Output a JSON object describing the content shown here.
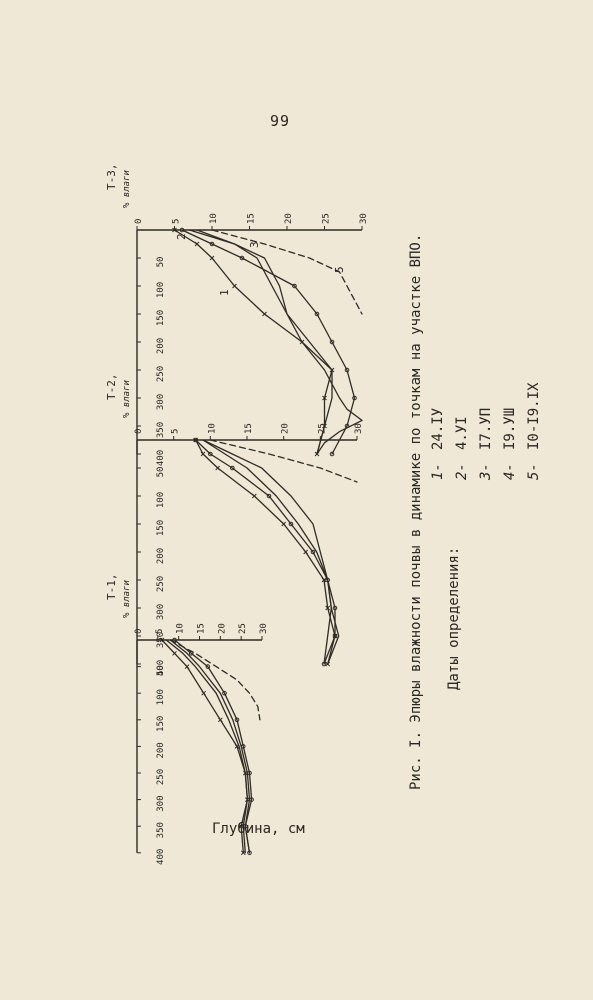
{
  "page": {
    "number": "99"
  },
  "figure": {
    "caption": "Рис. I. Эпюры влажности почвы в динамике по точкам на участке ВПО.",
    "dates_title": "Даты определения:",
    "dates": [
      {
        "num": "1-",
        "date": "24.IУ"
      },
      {
        "num": "2-",
        "date": "4.УI"
      },
      {
        "num": "3-",
        "date": "I7.УП"
      },
      {
        "num": "4-",
        "date": "I9.УШ"
      },
      {
        "num": "5-",
        "date": "I0-I9.IX"
      }
    ],
    "shared_depth_label": "Глубина, см"
  },
  "chart_data": [
    {
      "type": "line",
      "title": "Т-1,",
      "ylabel": "% влаги",
      "xlabel": "",
      "xlim": [
        0,
        400
      ],
      "ylim": [
        0,
        30
      ],
      "x_ticks": [
        50,
        100,
        150,
        200,
        250,
        300,
        350,
        400
      ],
      "y_ticks": [
        0,
        5,
        10,
        15,
        20,
        25,
        30
      ],
      "series": [
        {
          "name": "1",
          "marker": "none",
          "x": [
            0,
            25,
            50,
            100,
            150,
            200,
            250,
            300,
            350,
            400
          ],
          "y": [
            7,
            11,
            14,
            19,
            22,
            24.5,
            26,
            26.5,
            25.5,
            26
          ]
        },
        {
          "name": "2",
          "marker": "none",
          "dashed": true,
          "x": [
            0,
            25,
            50,
            75,
            100,
            125,
            150
          ],
          "y": [
            8,
            14,
            19,
            24,
            27,
            29,
            29.5
          ]
        },
        {
          "name": "3",
          "marker": "dot",
          "x": [
            0,
            25,
            50,
            100,
            150,
            200,
            250,
            300,
            350,
            400
          ],
          "y": [
            9,
            13,
            17,
            21,
            24,
            25.5,
            27,
            27.5,
            26,
            27
          ]
        },
        {
          "name": "4",
          "marker": "cross",
          "x": [
            0,
            25,
            50,
            100,
            150,
            200,
            250,
            300,
            350,
            400
          ],
          "y": [
            6,
            9,
            12,
            16,
            20,
            24,
            26,
            26.5,
            25,
            25.5
          ]
        },
        {
          "name": "5",
          "marker": "none",
          "x": [
            0,
            25,
            50,
            100,
            150,
            200,
            250,
            300,
            350,
            400
          ],
          "y": [
            8,
            12,
            15,
            20,
            23,
            25,
            26.5,
            27,
            26,
            27
          ]
        }
      ]
    },
    {
      "type": "line",
      "title": "Т-2,",
      "ylabel": "% влаги",
      "xlabel": "",
      "xlim": [
        0,
        400
      ],
      "ylim": [
        0,
        30
      ],
      "x_ticks": [
        50,
        100,
        150,
        200,
        250,
        300,
        350,
        400
      ],
      "y_ticks": [
        0,
        5,
        10,
        15,
        20,
        25,
        30
      ],
      "series": [
        {
          "name": "1",
          "marker": "none",
          "x": [
            0,
            25,
            50,
            100,
            150,
            200,
            250,
            300,
            350,
            400
          ],
          "y": [
            9,
            12,
            15,
            19,
            22,
            24.5,
            26,
            26.5,
            27.5,
            26
          ]
        },
        {
          "name": "2",
          "marker": "none",
          "dashed": true,
          "x": [
            0,
            25,
            50,
            75
          ],
          "y": [
            10,
            18,
            25,
            30
          ]
        },
        {
          "name": "3",
          "marker": "dot",
          "x": [
            0,
            25,
            50,
            100,
            150,
            200,
            250,
            300,
            350,
            400
          ],
          "y": [
            8,
            10,
            13,
            18,
            21,
            24,
            26,
            27,
            27,
            25.5
          ]
        },
        {
          "name": "4",
          "marker": "cross",
          "x": [
            0,
            25,
            50,
            100,
            150,
            200,
            250,
            300,
            350,
            400
          ],
          "y": [
            8,
            9,
            11,
            16,
            20,
            23,
            25.5,
            26,
            27,
            26
          ]
        },
        {
          "name": "5",
          "marker": "none",
          "x": [
            0,
            25,
            50,
            100,
            150,
            200,
            250,
            300,
            350,
            400
          ],
          "y": [
            9,
            13,
            17,
            21,
            24,
            25,
            26,
            26.5,
            26,
            25.5
          ]
        }
      ]
    },
    {
      "type": "line",
      "title": "Т-3,",
      "ylabel": "% влаги",
      "xlabel": "",
      "xlim": [
        0,
        400
      ],
      "ylim": [
        0,
        30
      ],
      "x_ticks": [
        50,
        100,
        150,
        200,
        250,
        300,
        350,
        400
      ],
      "y_ticks": [
        0,
        5,
        10,
        15,
        20,
        25,
        30
      ],
      "series": [
        {
          "name": "1",
          "marker": "none",
          "x": [
            0,
            25,
            50,
            100,
            150,
            200,
            250,
            300,
            320,
            340,
            360,
            380,
            400
          ],
          "y": [
            7,
            13,
            17,
            19,
            20,
            22,
            25,
            27,
            28,
            30,
            27,
            25,
            24
          ]
        },
        {
          "name": "2",
          "marker": "none",
          "dashed": true,
          "x": [
            0,
            25,
            50,
            75,
            100,
            125,
            150
          ],
          "y": [
            10,
            17,
            23,
            27,
            28,
            29,
            30
          ]
        },
        {
          "name": "3",
          "marker": "dot",
          "x": [
            0,
            25,
            50,
            100,
            150,
            200,
            250,
            300,
            350,
            400
          ],
          "y": [
            6,
            10,
            14,
            21,
            24,
            26,
            28,
            29,
            28,
            26
          ]
        },
        {
          "name": "4",
          "marker": "cross",
          "x": [
            0,
            25,
            50,
            100,
            150,
            200,
            250,
            300,
            350,
            400
          ],
          "y": [
            5,
            8,
            10,
            13,
            17,
            22,
            26,
            25,
            25,
            24
          ]
        },
        {
          "name": "5",
          "marker": "none",
          "x": [
            0,
            25,
            50,
            100,
            150,
            200,
            250,
            300,
            350,
            400
          ],
          "y": [
            8,
            13,
            16,
            18,
            20,
            23,
            26,
            26,
            25,
            24
          ]
        }
      ]
    }
  ]
}
